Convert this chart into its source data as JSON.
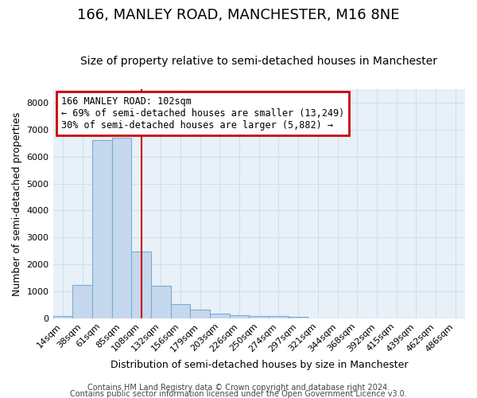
{
  "title": "166, MANLEY ROAD, MANCHESTER, M16 8NE",
  "subtitle": "Size of property relative to semi-detached houses in Manchester",
  "xlabel": "Distribution of semi-detached houses by size in Manchester",
  "ylabel": "Number of semi-detached properties",
  "footer_line1": "Contains HM Land Registry data © Crown copyright and database right 2024.",
  "footer_line2": "Contains public sector information licensed under the Open Government Licence v3.0.",
  "bin_labels": [
    "14sqm",
    "38sqm",
    "61sqm",
    "85sqm",
    "108sqm",
    "132sqm",
    "156sqm",
    "179sqm",
    "203sqm",
    "226sqm",
    "250sqm",
    "274sqm",
    "297sqm",
    "321sqm",
    "344sqm",
    "368sqm",
    "392sqm",
    "415sqm",
    "439sqm",
    "462sqm",
    "486sqm"
  ],
  "bar_heights": [
    90,
    1240,
    6600,
    6700,
    2470,
    1200,
    540,
    330,
    165,
    110,
    95,
    75,
    60,
    0,
    0,
    0,
    0,
    0,
    0,
    0,
    0
  ],
  "bar_color": "#c5d8ed",
  "bar_edge_color": "#7aadd4",
  "grid_color": "#d0dded",
  "bg_color": "#e8f0f8",
  "fig_bg_color": "#ffffff",
  "vline_color": "#cc0000",
  "vline_bin_index": 4,
  "annotation_line1": "166 MANLEY ROAD: 102sqm",
  "annotation_line2": "← 69% of semi-detached houses are smaller (13,249)",
  "annotation_line3": "30% of semi-detached houses are larger (5,882) →",
  "annotation_box_color": "#cc0000",
  "ylim": [
    0,
    8500
  ],
  "yticks": [
    0,
    1000,
    2000,
    3000,
    4000,
    5000,
    6000,
    7000,
    8000
  ],
  "title_fontsize": 13,
  "subtitle_fontsize": 10,
  "ylabel_fontsize": 9,
  "xlabel_fontsize": 9,
  "tick_fontsize": 8,
  "footer_fontsize": 7
}
